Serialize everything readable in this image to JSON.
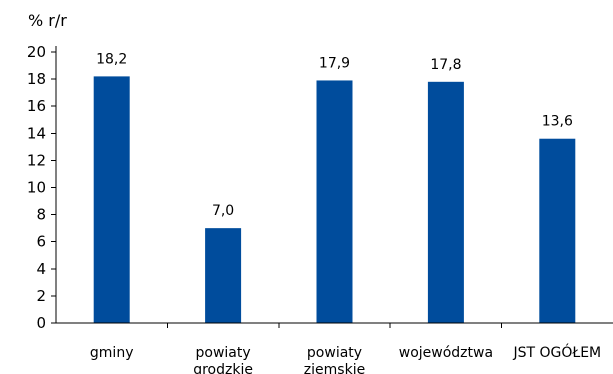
{
  "chart_data": {
    "type": "bar",
    "ylabel": "% r/r",
    "categories": [
      [
        "gminy"
      ],
      [
        "powiaty",
        "grodzkie"
      ],
      [
        "powiaty",
        "ziemskie"
      ],
      [
        "województwa"
      ],
      [
        "JST OGÓŁEM"
      ]
    ],
    "values": [
      18.2,
      7.0,
      17.9,
      17.8,
      13.6
    ],
    "data_labels": [
      "18,2",
      "7,0",
      "17,9",
      "17,8",
      "13,6"
    ],
    "ylim": [
      0,
      20
    ],
    "yticks": [
      0,
      2,
      4,
      6,
      8,
      10,
      12,
      14,
      16,
      18,
      20
    ],
    "grid": false,
    "legend": "none",
    "bar_color": "#004C9C"
  }
}
